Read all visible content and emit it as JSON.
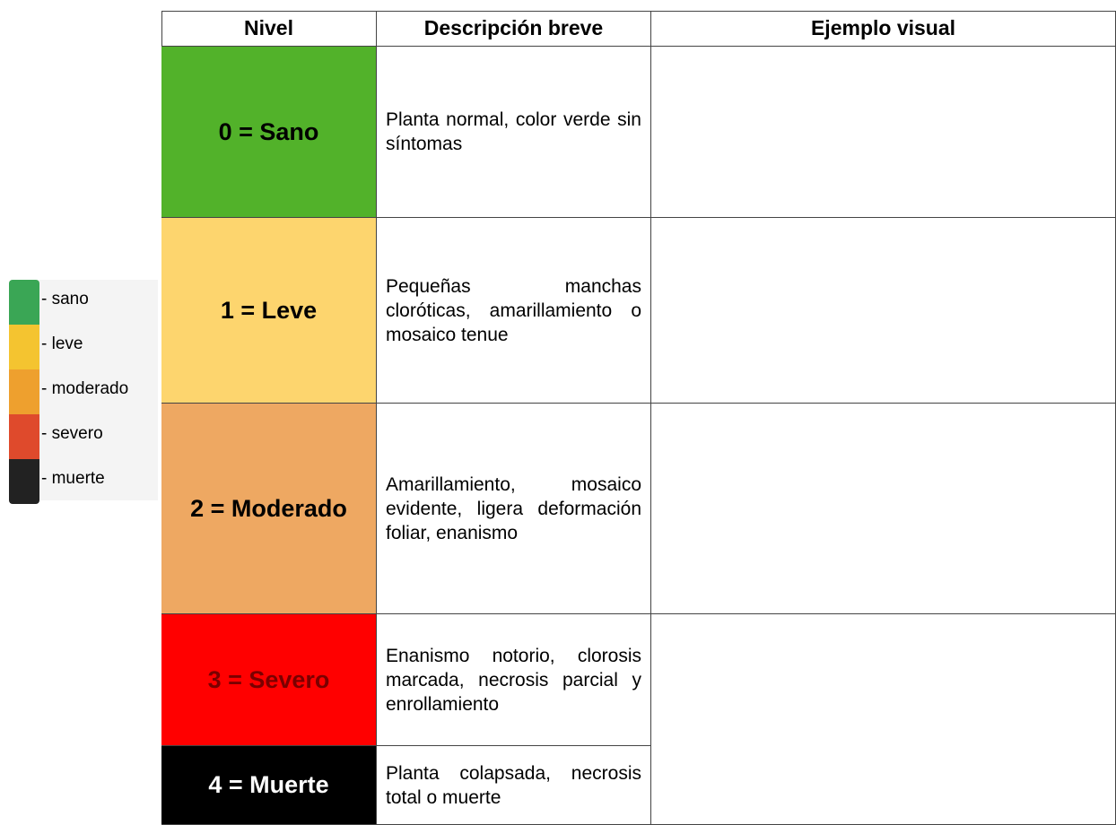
{
  "legend": {
    "items": [
      {
        "label": "- sano",
        "color": "#3aa655"
      },
      {
        "label": "- leve",
        "color": "#f4c430"
      },
      {
        "label": "- moderado",
        "color": "#eea02e"
      },
      {
        "label": "- severo",
        "color": "#df4a2c"
      },
      {
        "label": "- muerte",
        "color": "#222222"
      }
    ]
  },
  "table": {
    "header": [
      "Nivel",
      "Descripción breve",
      "Ejemplo visual"
    ],
    "rows": [
      {
        "level": "0 = Sano",
        "description": "Planta normal, color verde sin síntomas",
        "color": "#52b22a",
        "text_color": "#000000"
      },
      {
        "level": "1 = Leve",
        "description": "Pequeñas manchas cloróticas, amarillamiento o mosaico tenue",
        "color": "#fdd56e",
        "text_color": "#000000"
      },
      {
        "level": "2 = Moderado",
        "description": "Amarillamiento, mosaico evidente, ligera deformación foliar, enanismo",
        "color": "#eea862",
        "text_color": "#000000"
      },
      {
        "level": "3 = Severo",
        "description": "Enanismo notorio, clorosis marcada, necrosis parcial y enrollamiento",
        "color": "#ff0000",
        "text_color": "#7a0000"
      },
      {
        "level": "4 = Muerte",
        "description": "Planta colapsada, necrosis total o muerte",
        "color": "#000000",
        "text_color": "#ffffff"
      }
    ]
  }
}
